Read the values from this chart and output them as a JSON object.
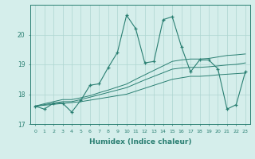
{
  "xlabel": "Humidex (Indice chaleur)",
  "x": [
    0,
    1,
    2,
    3,
    4,
    5,
    6,
    7,
    8,
    9,
    10,
    11,
    12,
    13,
    14,
    15,
    16,
    17,
    18,
    19,
    20,
    21,
    22,
    23
  ],
  "y_main": [
    17.6,
    17.5,
    17.7,
    17.7,
    17.4,
    17.8,
    18.3,
    18.35,
    18.9,
    19.4,
    20.65,
    20.2,
    19.05,
    19.1,
    20.5,
    20.6,
    19.6,
    18.75,
    19.15,
    19.15,
    18.85,
    17.5,
    17.65,
    18.75
  ],
  "y_line1": [
    17.6,
    17.63,
    17.66,
    17.69,
    17.72,
    17.75,
    17.8,
    17.85,
    17.9,
    17.95,
    18.0,
    18.1,
    18.2,
    18.3,
    18.4,
    18.5,
    18.55,
    18.6,
    18.6,
    18.62,
    18.65,
    18.67,
    18.69,
    18.71
  ],
  "y_line2": [
    17.6,
    17.65,
    17.7,
    17.75,
    17.75,
    17.82,
    17.9,
    17.98,
    18.06,
    18.14,
    18.22,
    18.35,
    18.48,
    18.6,
    18.72,
    18.84,
    18.88,
    18.9,
    18.9,
    18.92,
    18.95,
    18.98,
    19.0,
    19.05
  ],
  "y_line3": [
    17.6,
    17.68,
    17.75,
    17.82,
    17.82,
    17.88,
    17.95,
    18.05,
    18.14,
    18.24,
    18.34,
    18.5,
    18.65,
    18.8,
    18.95,
    19.1,
    19.15,
    19.18,
    19.18,
    19.2,
    19.25,
    19.3,
    19.32,
    19.35
  ],
  "color_main": "#2a7f72",
  "color_lines": "#2a7f72",
  "bg_color": "#d5eeeb",
  "grid_color": "#aed5d0",
  "ylim": [
    17.0,
    21.0
  ],
  "xlim": [
    -0.5,
    23.5
  ],
  "yticks": [
    17,
    18,
    19,
    20
  ],
  "xticks": [
    0,
    1,
    2,
    3,
    4,
    5,
    6,
    7,
    8,
    9,
    10,
    11,
    12,
    13,
    14,
    15,
    16,
    17,
    18,
    19,
    20,
    21,
    22,
    23
  ]
}
